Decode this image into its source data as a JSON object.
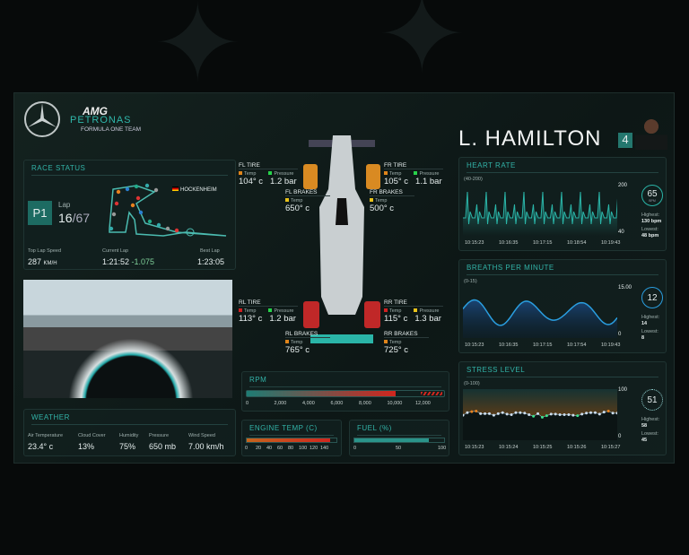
{
  "team": {
    "brand": "AMG",
    "sponsor": "PETRONAS",
    "subtitle": "FORMULA ONE TEAM"
  },
  "race_status": {
    "title": "RACE STATUS",
    "position": "P1",
    "lap_label": "Lap",
    "lap_current": "16",
    "lap_total": "/67",
    "track": "HOCKENHEIM",
    "top_speed_label": "Top Lap Speed",
    "top_speed": "287",
    "top_speed_unit": "KM/H",
    "current_lap_label": "Current Lap",
    "current_lap": "1:21:52",
    "delta": "-1.075",
    "best_lap_label": "Best Lap",
    "best_lap": "1:23:05"
  },
  "weather": {
    "title": "WEATHER",
    "items": [
      {
        "label": "Air Temperature",
        "value": "23.4° c"
      },
      {
        "label": "Cloud Cover",
        "value": "13%"
      },
      {
        "label": "Humidity",
        "value": "75%"
      },
      {
        "label": "Pressure",
        "value": "650 mb"
      },
      {
        "label": "Wind Speed",
        "value": "7.00 km/h"
      }
    ]
  },
  "tires": {
    "fl": {
      "title": "FL TIRE",
      "temp_label": "Temp",
      "pressure_label": "Pressure",
      "temp": "104° c",
      "pressure": "1.2 bar"
    },
    "fr": {
      "title": "FR TIRE",
      "temp_label": "Temp",
      "pressure_label": "Pressure",
      "temp": "105° c",
      "pressure": "1.1 bar"
    },
    "rl": {
      "title": "RL TIRE",
      "temp_label": "Temp",
      "pressure_label": "Pressure",
      "temp": "113° c",
      "pressure": "1.2 bar"
    },
    "rr": {
      "title": "RR TIRE",
      "temp_label": "Temp",
      "pressure_label": "Pressure",
      "temp": "115° c",
      "pressure": "1.3 bar"
    }
  },
  "brakes": {
    "fl": {
      "title": "FL BRAKES",
      "temp_label": "Temp",
      "temp": "650° c"
    },
    "fr": {
      "title": "FR BRAKES",
      "temp_label": "Temp",
      "temp": "500° c"
    },
    "rl": {
      "title": "RL BRAKES",
      "temp_label": "Temp",
      "temp": "765° c"
    },
    "rr": {
      "title": "RR BRAKES",
      "temp_label": "Temp",
      "temp": "725° c"
    }
  },
  "rpm": {
    "title": "RPM",
    "value": 9800,
    "max": 13000,
    "ticks": [
      "0",
      "2,000",
      "4,000",
      "6,000",
      "8,000",
      "10,000",
      "12,000"
    ]
  },
  "engine_temp": {
    "title": "ENGINE TEMP (C)",
    "value": 130,
    "max": 140,
    "ticks": [
      "0",
      "20",
      "40",
      "60",
      "80",
      "100",
      "120",
      "140"
    ]
  },
  "fuel": {
    "title": "FUEL (%)",
    "value": 83,
    "ticks": [
      "0",
      "50",
      "100"
    ]
  },
  "driver": {
    "name": "L. HAMILTON",
    "number": "4"
  },
  "heart_rate": {
    "title": "HEART RATE",
    "range": "(40-200)",
    "ymax": "200",
    "ymin": "40",
    "current": "65",
    "unit": "BPM",
    "highest_label": "Highest:",
    "highest": "130 bpm",
    "lowest_label": "Lowest:",
    "lowest": "48 bpm",
    "times": [
      "10:15:23",
      "10:16:35",
      "10:17:15",
      "10:18:54",
      "10:19:43"
    ]
  },
  "breaths": {
    "title": "BREATHS PER MINUTE",
    "range": "(0-15)",
    "ymax": "15.00",
    "ymin": "0",
    "current": "12",
    "highest_label": "Highest:",
    "highest": "14",
    "lowest_label": "Lowest:",
    "lowest": "8",
    "times": [
      "10:15:23",
      "10:16:35",
      "10:17:15",
      "10:17:54",
      "10:19:43"
    ]
  },
  "stress": {
    "title": "STRESS LEVEL",
    "range": "(0-100)",
    "ymax": "100",
    "ymin": "0",
    "current": "51",
    "highest_label": "Highest:",
    "highest": "58",
    "lowest_label": "Lowest:",
    "lowest": "45",
    "times": [
      "10:15:23",
      "10:15:24",
      "10:15:25",
      "10:15:26",
      "10:15:27"
    ],
    "values": [
      49,
      54,
      56,
      57,
      52,
      52,
      52,
      49,
      52,
      54,
      51,
      50,
      54,
      54,
      53,
      50,
      47,
      52,
      45,
      48,
      51,
      51,
      50,
      50,
      50,
      49,
      48,
      51,
      53,
      54,
      54,
      51,
      55,
      57,
      53,
      53
    ]
  },
  "colors": {
    "accent": "#32b3a8",
    "temp_orange": "#e0841a",
    "temp_red": "#d02020",
    "pressure_green": "#27d24a",
    "warn_yellow": "#e8c21a",
    "breath_blue": "#2a9ee0"
  }
}
